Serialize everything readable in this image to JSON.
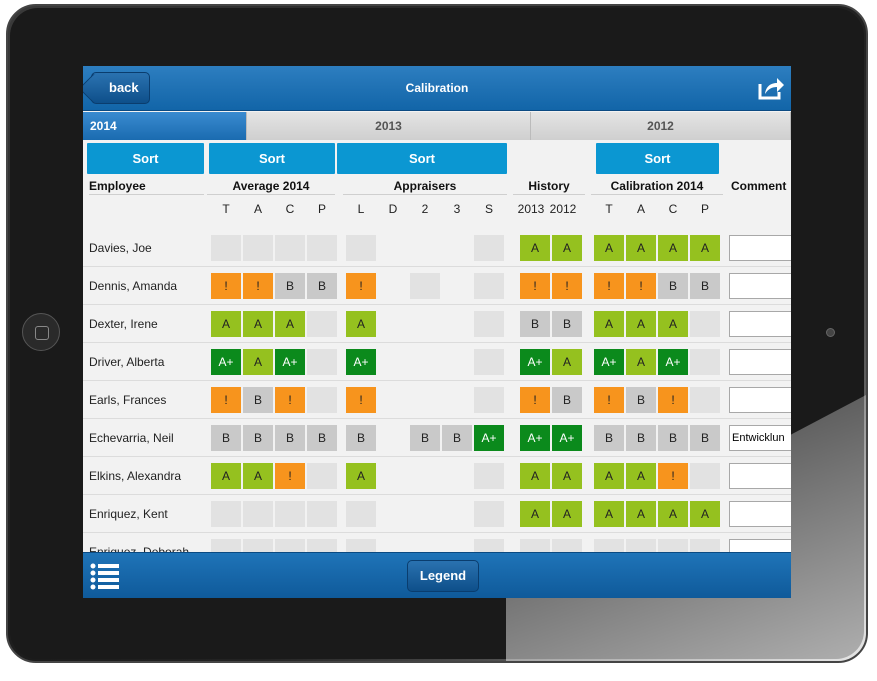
{
  "header": {
    "back_label": "back",
    "title": "Calibration"
  },
  "tabs": [
    {
      "label": "2014"
    },
    {
      "label": "2013"
    },
    {
      "label": "2012"
    }
  ],
  "sort_label": "Sort",
  "columns": {
    "employee": "Employee",
    "average": {
      "title": "Average 2014",
      "subs": [
        "T",
        "A",
        "C",
        "P"
      ]
    },
    "appraisers": {
      "title": "Appraisers",
      "subs": [
        "L",
        "D",
        "2",
        "3",
        "S"
      ]
    },
    "history": {
      "title": "History",
      "subs": [
        "2013",
        "2012"
      ]
    },
    "calibration": {
      "title": "Calibration 2014",
      "subs": [
        "T",
        "A",
        "C",
        "P"
      ]
    },
    "comment": "Comment"
  },
  "rows": [
    {
      "name": "Davies, Joe",
      "avg": [
        "",
        "",
        "",
        ""
      ],
      "appr": [
        "",
        null,
        null,
        null,
        ""
      ],
      "hist": [
        "A",
        "A"
      ],
      "cal": [
        "A",
        "A",
        "A",
        "A"
      ],
      "comment": ""
    },
    {
      "name": "Dennis, Amanda",
      "avg": [
        "!",
        "!",
        "B",
        "B"
      ],
      "appr": [
        "!",
        null,
        "",
        null,
        ""
      ],
      "hist": [
        "!",
        "!"
      ],
      "cal": [
        "!",
        "!",
        "B",
        "B"
      ],
      "comment": ""
    },
    {
      "name": "Dexter, Irene",
      "avg": [
        "A",
        "A",
        "A",
        ""
      ],
      "appr": [
        "A",
        null,
        null,
        null,
        ""
      ],
      "hist": [
        "B",
        "B"
      ],
      "cal": [
        "A",
        "A",
        "A",
        ""
      ],
      "comment": ""
    },
    {
      "name": "Driver, Alberta",
      "avg": [
        "A+",
        "A",
        "A+",
        ""
      ],
      "appr": [
        "A+",
        null,
        null,
        null,
        ""
      ],
      "hist": [
        "A+",
        "A"
      ],
      "cal": [
        "A+",
        "A",
        "A+",
        ""
      ],
      "comment": ""
    },
    {
      "name": "Earls, Frances",
      "avg": [
        "!",
        "B",
        "!",
        ""
      ],
      "appr": [
        "!",
        null,
        null,
        null,
        ""
      ],
      "hist": [
        "!",
        "B"
      ],
      "cal": [
        "!",
        "B",
        "!",
        ""
      ],
      "comment": ""
    },
    {
      "name": "Echevarria, Neil",
      "avg": [
        "B",
        "B",
        "B",
        "B"
      ],
      "appr": [
        "B",
        null,
        "B",
        "B",
        "A+"
      ],
      "hist": [
        "A+",
        "A+"
      ],
      "cal": [
        "B",
        "B",
        "B",
        "B"
      ],
      "comment": "Entwicklun"
    },
    {
      "name": "Elkins, Alexandra",
      "avg": [
        "A",
        "A",
        "!",
        ""
      ],
      "appr": [
        "A",
        null,
        null,
        null,
        ""
      ],
      "hist": [
        "A",
        "A"
      ],
      "cal": [
        "A",
        "A",
        "!",
        ""
      ],
      "comment": ""
    },
    {
      "name": "Enriquez, Kent",
      "avg": [
        "",
        "",
        "",
        ""
      ],
      "appr": [
        "",
        null,
        null,
        null,
        ""
      ],
      "hist": [
        "A",
        "A"
      ],
      "cal": [
        "A",
        "A",
        "A",
        "A"
      ],
      "comment": ""
    },
    {
      "name": "Enriquez, Deborah",
      "avg": [
        "",
        "",
        "",
        ""
      ],
      "appr": [
        "",
        null,
        null,
        null,
        ""
      ],
      "hist": [
        "",
        ""
      ],
      "cal": [
        "",
        "",
        "",
        ""
      ],
      "comment": ""
    }
  ],
  "footer": {
    "legend_label": "Legend"
  },
  "colors": {
    "A_plus": "#0b8a1c",
    "A": "#95c11f",
    "B": "#c9c9c9",
    "warning": "#f7941d",
    "accent": "#0b97d2"
  }
}
